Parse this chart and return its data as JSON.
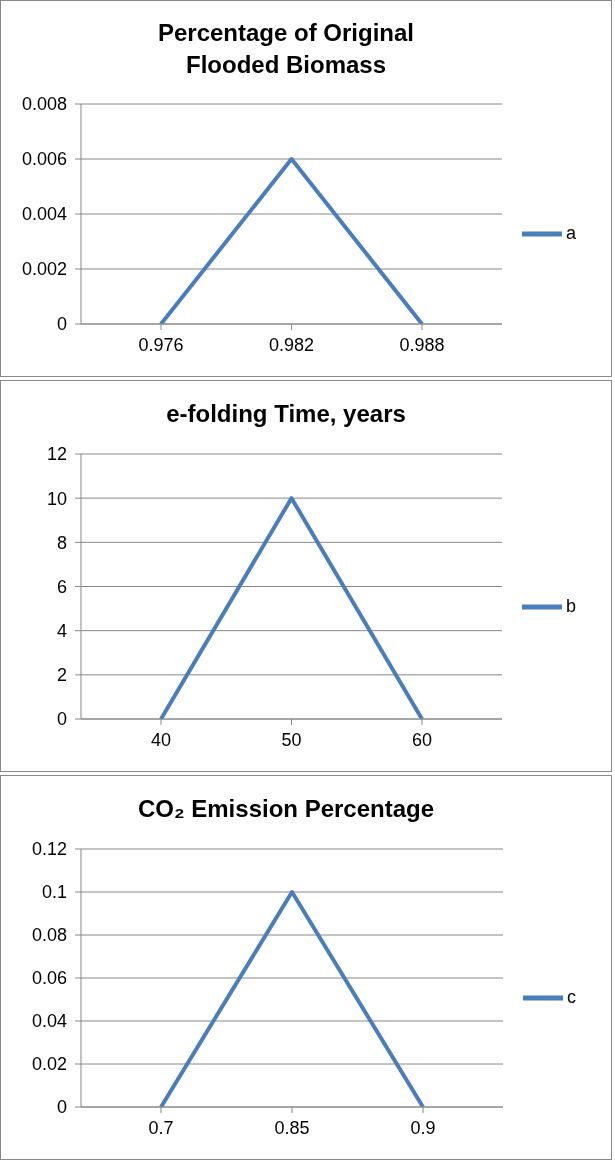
{
  "chart_data": [
    {
      "type": "line",
      "title": "Percentage of Original Flooded Biomass",
      "categories": [
        "0.976",
        "0.982",
        "0.988"
      ],
      "series": [
        {
          "name": "a",
          "color": "#4a7ebb",
          "values": [
            0,
            0.006,
            0
          ]
        }
      ],
      "ylim": [
        0,
        0.008
      ],
      "yticks": [
        0,
        0.002,
        0.004,
        0.006,
        0.008
      ],
      "grid": "y",
      "legend": "right",
      "marker": "none",
      "line_style": "solid"
    },
    {
      "type": "line",
      "title": "e-folding Time, years",
      "categories": [
        "40",
        "50",
        "60"
      ],
      "series": [
        {
          "name": "b",
          "color": "#4a7ebb",
          "values": [
            0,
            10,
            0
          ]
        }
      ],
      "ylim": [
        0,
        12
      ],
      "yticks": [
        0,
        2,
        4,
        6,
        8,
        10,
        12
      ],
      "grid": "y",
      "legend": "right",
      "marker": "none",
      "line_style": "solid"
    },
    {
      "type": "line",
      "title": "CO₂ Emission Percentage",
      "categories": [
        "0.7",
        "0.85",
        "0.9"
      ],
      "series": [
        {
          "name": "c",
          "color": "#4a7ebb",
          "values": [
            0,
            0.1,
            0
          ]
        }
      ],
      "ylim": [
        0,
        0.12
      ],
      "yticks": [
        0,
        0.02,
        0.04,
        0.06,
        0.08,
        0.1,
        0.12
      ],
      "grid": "y",
      "legend": "right",
      "marker": "none",
      "line_style": "solid"
    }
  ]
}
